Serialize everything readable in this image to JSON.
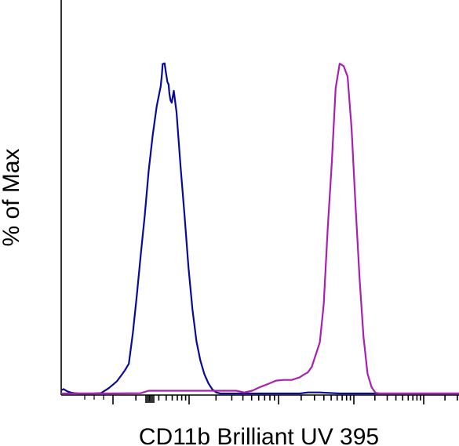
{
  "chart_data": {
    "type": "line",
    "title": "",
    "xlabel": "CD11b Brilliant UV 395",
    "ylabel": "% of Max",
    "xscale": "log",
    "xlim": [
      0,
      1
    ],
    "ylim": [
      0,
      100
    ],
    "grid": false,
    "legend": "none",
    "series": [
      {
        "color": "#0a0a9a",
        "x": [
          0,
          0.006,
          0.016,
          0.026,
          0.034,
          0.044,
          0.08,
          0.1,
          0.12,
          0.14,
          0.15,
          0.16,
          0.17,
          0.18,
          0.19,
          0.2,
          0.21,
          0.22,
          0.23,
          0.24,
          0.25,
          0.253,
          0.255,
          0.26,
          0.263,
          0.267,
          0.27,
          0.272,
          0.275,
          0.278,
          0.283,
          0.29,
          0.3,
          0.31,
          0.32,
          0.33,
          0.34,
          0.35,
          0.36,
          0.37,
          0.38,
          0.39,
          0.4,
          0.42,
          0.44,
          0.46,
          0.5,
          0.55,
          0.6,
          0.62,
          0.65,
          0.7,
          0.75,
          0.8,
          0.9,
          1
        ],
        "y": [
          1.0,
          1.3,
          0.6,
          0.2,
          0.1,
          0,
          0,
          0.1,
          1.6,
          3.6,
          5.2,
          6.8,
          8.8,
          17.8,
          28.8,
          41.0,
          52.6,
          65.8,
          76.2,
          84.8,
          90.7,
          94.1,
          97.3,
          97.5,
          95.0,
          92.0,
          91.3,
          88.5,
          86.5,
          85.9,
          89.4,
          83.0,
          67.1,
          52.6,
          37.3,
          24.8,
          15.4,
          9.7,
          5.7,
          3.0,
          1.2,
          0.3,
          0,
          0,
          0,
          0,
          0,
          0,
          0,
          0.3,
          0.3,
          0,
          0,
          0,
          0,
          0
        ]
      },
      {
        "color": "#aa1fb0",
        "x": [
          0,
          0.1,
          0.2,
          0.22,
          0.3,
          0.4,
          0.44,
          0.46,
          0.48,
          0.5,
          0.52,
          0.54,
          0.56,
          0.58,
          0.6,
          0.61,
          0.62,
          0.63,
          0.65,
          0.66,
          0.67,
          0.68,
          0.69,
          0.7,
          0.71,
          0.72,
          0.73,
          0.74,
          0.75,
          0.76,
          0.77,
          0.78,
          0.79,
          0.8,
          0.81,
          0.82,
          0.83,
          0.85,
          0.9,
          1
        ],
        "y": [
          0,
          0,
          0.1,
          0.8,
          0.8,
          0.8,
          0.8,
          0.3,
          0.8,
          1.9,
          2.8,
          3.8,
          4.0,
          4.0,
          4.8,
          5.6,
          6.2,
          7.9,
          15.1,
          26.4,
          48.8,
          67.8,
          90.2,
          97.4,
          96.7,
          93.6,
          78.2,
          55.2,
          33.9,
          16.7,
          5.9,
          1.9,
          0.2,
          0,
          0,
          0,
          0,
          0,
          0,
          0
        ]
      }
    ]
  }
}
